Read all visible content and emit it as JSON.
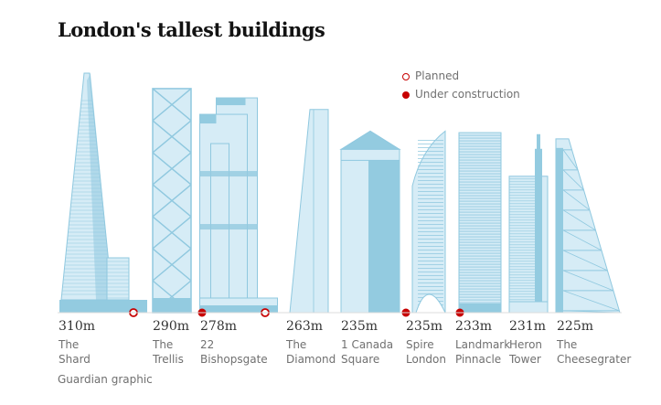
{
  "title": "London's tallest buildings",
  "source": "Guardian graphic",
  "legend": {
    "planned": "Planned",
    "under_construction": "Under construction"
  },
  "colors": {
    "fill": "#d6ecf6",
    "stroke": "#8fc8df",
    "dark": "#93cbe0",
    "status": "#c70000"
  },
  "chart_data": {
    "type": "bar",
    "title": "London's tallest buildings",
    "unit": "m",
    "categories": [
      "The Shard",
      "The Trellis",
      "22 Bishopsgate",
      "The Diamond",
      "1 Canada Square",
      "Spire London",
      "Landmark Pinnacle",
      "Heron Tower",
      "The Cheesegrater"
    ],
    "values": [
      310,
      290,
      278,
      263,
      235,
      235,
      233,
      231,
      225
    ],
    "height_labels": [
      "310m",
      "290m",
      "278m",
      "263m",
      "235m",
      "235m",
      "233m",
      "231m",
      "225m"
    ],
    "name_lines": [
      [
        "The",
        "Shard"
      ],
      [
        "The",
        "Trellis"
      ],
      [
        "22",
        "Bishopsgate"
      ],
      [
        "The",
        "Diamond"
      ],
      [
        "1 Canada",
        "Square"
      ],
      [
        "Spire",
        "London"
      ],
      [
        "Landmark",
        "Pinnacle"
      ],
      [
        "Heron",
        "Tower"
      ],
      [
        "The",
        "Cheesegrater"
      ]
    ],
    "status": [
      "",
      "planned",
      "under_construction",
      "planned",
      "",
      "under_construction",
      "under_construction",
      "",
      ""
    ]
  }
}
